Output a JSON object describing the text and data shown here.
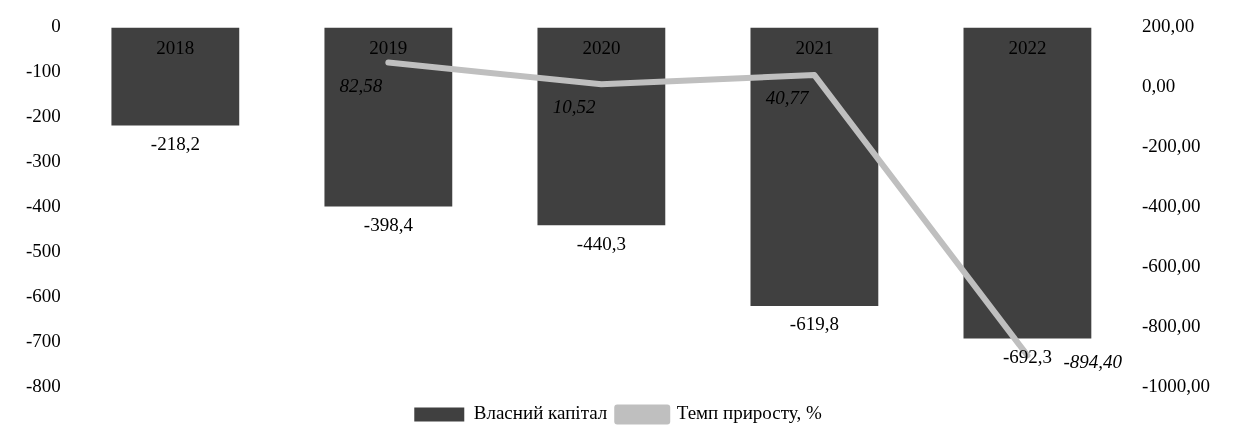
{
  "chart_data": {
    "type": "bar",
    "categories": [
      "2018",
      "2019",
      "2020",
      "2021",
      "2022"
    ],
    "series": [
      {
        "name": "Власний капітал",
        "color": "#404040",
        "values": [
          -218.2,
          -398.4,
          -440.3,
          -619.8,
          -692.3
        ],
        "value_labels": [
          "-218,2",
          "-398,4",
          "-440,3",
          "-619,8",
          "-692,3"
        ]
      },
      {
        "name": "Темп приросту, %",
        "type": "line",
        "axis": "y2",
        "color": "#bfbfbf",
        "values": [
          null,
          82.58,
          10.52,
          40.77,
          -894.4
        ],
        "value_labels": [
          null,
          "82,58",
          "10,52",
          "40,77",
          "-894,40"
        ]
      }
    ],
    "ylim": [
      -800,
      0
    ],
    "yticks": [
      -800,
      -700,
      -600,
      -500,
      -400,
      -300,
      -200,
      -100,
      0
    ],
    "y2lim": [
      -1000,
      200
    ],
    "y2ticks": [
      {
        "value": -1000,
        "label": "-1000,00"
      },
      {
        "value": -800,
        "label": "-800,00"
      },
      {
        "value": -600,
        "label": "-600,00"
      },
      {
        "value": -400,
        "label": "-400,00"
      },
      {
        "value": -200,
        "label": "-200,00"
      },
      {
        "value": 0,
        "label": "0,00"
      },
      {
        "value": 200,
        "label": "200,00"
      }
    ],
    "tick_labels": "y",
    "legend": "bottom"
  }
}
